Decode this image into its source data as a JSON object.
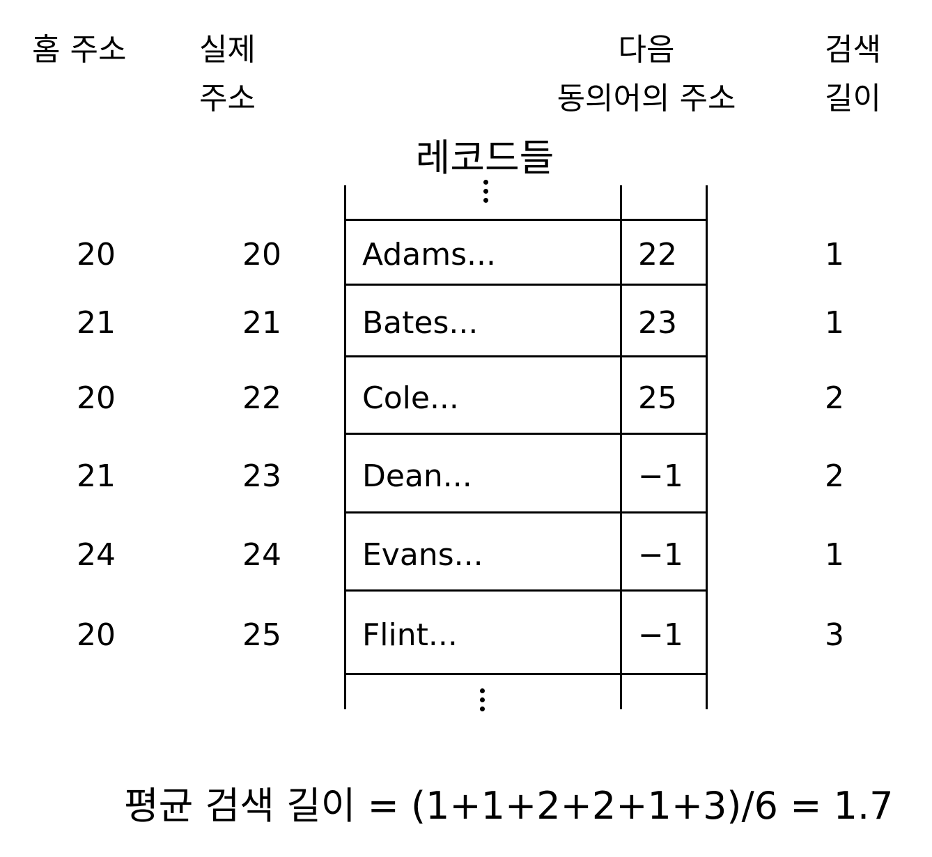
{
  "headers": {
    "home_address": "홈 주소",
    "actual_address_line1": "실제",
    "actual_address_line2": "주소",
    "next_synonym_line1": "다음",
    "next_synonym_line2": "동의어의 주소",
    "search_length_line1": "검색",
    "search_length_line2": "길이",
    "records": "레코드들"
  },
  "rows": [
    {
      "home": "20",
      "actual": "20",
      "record": "Adams...",
      "next": "22",
      "length": "1"
    },
    {
      "home": "21",
      "actual": "21",
      "record": "Bates...",
      "next": "23",
      "length": "1"
    },
    {
      "home": "20",
      "actual": "22",
      "record": "Cole...",
      "next": "25",
      "length": "2"
    },
    {
      "home": "21",
      "actual": "23",
      "record": "Dean...",
      "next": "−1",
      "length": "2"
    },
    {
      "home": "24",
      "actual": "24",
      "record": "Evans...",
      "next": "−1",
      "length": "1"
    },
    {
      "home": "20",
      "actual": "25",
      "record": "Flint...",
      "next": "−1",
      "length": "3"
    }
  ],
  "formula": "평균 검색 길이 = (1+1+2+2+1+3)/6 = 1.7"
}
